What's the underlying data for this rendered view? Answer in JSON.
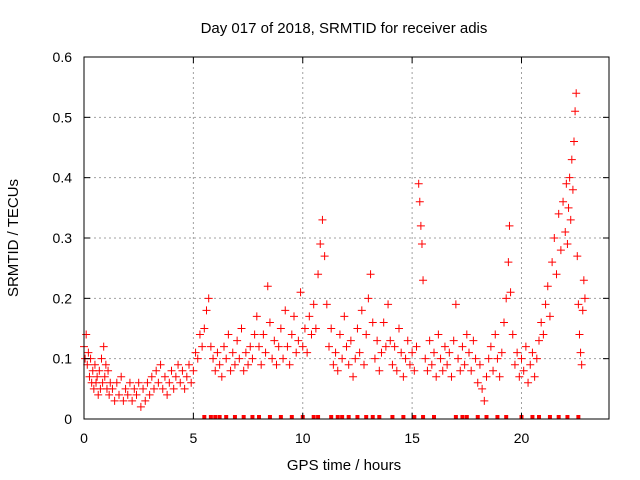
{
  "chart_data": {
    "type": "scatter",
    "title": "Day 017 of 2018, SRMTID for receiver adis",
    "xlabel": "GPS time / hours",
    "ylabel": "SRMTID / TECUs",
    "xlim": [
      0,
      24
    ],
    "ylim": [
      0,
      0.6
    ],
    "x_ticks": [
      0,
      5,
      10,
      15,
      20
    ],
    "x_tick_labels": [
      "0",
      "5",
      "10",
      "15",
      "20"
    ],
    "y_ticks": [
      0,
      0.1,
      0.2,
      0.3,
      0.4,
      0.5,
      0.6
    ],
    "y_tick_labels": [
      "0",
      "0.1",
      "0.2",
      "0.3",
      "0.4",
      "0.5",
      "0.6"
    ],
    "grid": true,
    "marker": "plus",
    "color": "#ff0000",
    "series": [
      {
        "name": "SRMTID",
        "points": [
          [
            0.0,
            0.12
          ],
          [
            0.05,
            0.1
          ],
          [
            0.1,
            0.14
          ],
          [
            0.15,
            0.09
          ],
          [
            0.2,
            0.11
          ],
          [
            0.25,
            0.07
          ],
          [
            0.3,
            0.1
          ],
          [
            0.35,
            0.06
          ],
          [
            0.4,
            0.08
          ],
          [
            0.45,
            0.05
          ],
          [
            0.5,
            0.09
          ],
          [
            0.55,
            0.06
          ],
          [
            0.6,
            0.07
          ],
          [
            0.65,
            0.04
          ],
          [
            0.7,
            0.08
          ],
          [
            0.75,
            0.05
          ],
          [
            0.8,
            0.1
          ],
          [
            0.85,
            0.06
          ],
          [
            0.9,
            0.12
          ],
          [
            0.95,
            0.07
          ],
          [
            1.0,
            0.09
          ],
          [
            1.05,
            0.05
          ],
          [
            1.1,
            0.08
          ],
          [
            1.15,
            0.04
          ],
          [
            1.2,
            0.06
          ],
          [
            1.3,
            0.05
          ],
          [
            1.4,
            0.03
          ],
          [
            1.5,
            0.06
          ],
          [
            1.6,
            0.04
          ],
          [
            1.7,
            0.07
          ],
          [
            1.8,
            0.03
          ],
          [
            1.9,
            0.05
          ],
          [
            2.0,
            0.04
          ],
          [
            2.1,
            0.06
          ],
          [
            2.2,
            0.03
          ],
          [
            2.3,
            0.05
          ],
          [
            2.4,
            0.04
          ],
          [
            2.5,
            0.06
          ],
          [
            2.6,
            0.02
          ],
          [
            2.7,
            0.05
          ],
          [
            2.8,
            0.03
          ],
          [
            2.9,
            0.06
          ],
          [
            3.0,
            0.04
          ],
          [
            3.1,
            0.07
          ],
          [
            3.2,
            0.05
          ],
          [
            3.3,
            0.08
          ],
          [
            3.4,
            0.06
          ],
          [
            3.5,
            0.09
          ],
          [
            3.6,
            0.05
          ],
          [
            3.7,
            0.07
          ],
          [
            3.8,
            0.04
          ],
          [
            3.9,
            0.06
          ],
          [
            4.0,
            0.08
          ],
          [
            4.1,
            0.05
          ],
          [
            4.2,
            0.07
          ],
          [
            4.3,
            0.09
          ],
          [
            4.4,
            0.06
          ],
          [
            4.5,
            0.08
          ],
          [
            4.6,
            0.05
          ],
          [
            4.7,
            0.07
          ],
          [
            4.8,
            0.09
          ],
          [
            4.9,
            0.06
          ],
          [
            5.0,
            0.08
          ],
          [
            5.1,
            0.11
          ],
          [
            5.2,
            0.1
          ],
          [
            5.3,
            0.14
          ],
          [
            5.4,
            0.12
          ],
          [
            5.5,
            0.15
          ],
          [
            5.6,
            0.18
          ],
          [
            5.7,
            0.2
          ],
          [
            5.8,
            0.12
          ],
          [
            5.9,
            0.1
          ],
          [
            6.0,
            0.08
          ],
          [
            6.1,
            0.11
          ],
          [
            6.2,
            0.09
          ],
          [
            6.3,
            0.07
          ],
          [
            6.4,
            0.12
          ],
          [
            6.5,
            0.1
          ],
          [
            6.6,
            0.14
          ],
          [
            6.7,
            0.08
          ],
          [
            6.8,
            0.11
          ],
          [
            6.9,
            0.09
          ],
          [
            7.0,
            0.13
          ],
          [
            7.1,
            0.1
          ],
          [
            7.2,
            0.15
          ],
          [
            7.3,
            0.08
          ],
          [
            7.4,
            0.11
          ],
          [
            7.5,
            0.09
          ],
          [
            7.6,
            0.12
          ],
          [
            7.7,
            0.1
          ],
          [
            7.8,
            0.14
          ],
          [
            7.9,
            0.17
          ],
          [
            8.0,
            0.12
          ],
          [
            8.1,
            0.09
          ],
          [
            8.2,
            0.14
          ],
          [
            8.3,
            0.11
          ],
          [
            8.4,
            0.22
          ],
          [
            8.5,
            0.16
          ],
          [
            8.6,
            0.1
          ],
          [
            8.7,
            0.13
          ],
          [
            8.8,
            0.09
          ],
          [
            8.9,
            0.12
          ],
          [
            9.0,
            0.15
          ],
          [
            9.1,
            0.1
          ],
          [
            9.2,
            0.18
          ],
          [
            9.3,
            0.12
          ],
          [
            9.4,
            0.09
          ],
          [
            9.5,
            0.14
          ],
          [
            9.6,
            0.17
          ],
          [
            9.7,
            0.11
          ],
          [
            9.8,
            0.13
          ],
          [
            9.9,
            0.21
          ],
          [
            10.0,
            0.12
          ],
          [
            10.1,
            0.15
          ],
          [
            10.2,
            0.11
          ],
          [
            10.3,
            0.17
          ],
          [
            10.4,
            0.14
          ],
          [
            10.5,
            0.19
          ],
          [
            10.6,
            0.15
          ],
          [
            10.7,
            0.24
          ],
          [
            10.8,
            0.29
          ],
          [
            10.9,
            0.33
          ],
          [
            11.0,
            0.27
          ],
          [
            11.1,
            0.19
          ],
          [
            11.2,
            0.12
          ],
          [
            11.3,
            0.15
          ],
          [
            11.4,
            0.09
          ],
          [
            11.5,
            0.11
          ],
          [
            11.6,
            0.08
          ],
          [
            11.7,
            0.14
          ],
          [
            11.8,
            0.1
          ],
          [
            11.9,
            0.17
          ],
          [
            12.0,
            0.12
          ],
          [
            12.1,
            0.09
          ],
          [
            12.2,
            0.13
          ],
          [
            12.3,
            0.07
          ],
          [
            12.4,
            0.1
          ],
          [
            12.5,
            0.15
          ],
          [
            12.6,
            0.11
          ],
          [
            12.7,
            0.18
          ],
          [
            12.8,
            0.09
          ],
          [
            12.9,
            0.14
          ],
          [
            13.0,
            0.2
          ],
          [
            13.1,
            0.24
          ],
          [
            13.2,
            0.16
          ],
          [
            13.3,
            0.1
          ],
          [
            13.4,
            0.13
          ],
          [
            13.5,
            0.08
          ],
          [
            13.6,
            0.11
          ],
          [
            13.7,
            0.16
          ],
          [
            13.8,
            0.12
          ],
          [
            13.9,
            0.19
          ],
          [
            14.0,
            0.13
          ],
          [
            14.1,
            0.09
          ],
          [
            14.2,
            0.12
          ],
          [
            14.3,
            0.08
          ],
          [
            14.4,
            0.15
          ],
          [
            14.5,
            0.11
          ],
          [
            14.6,
            0.07
          ],
          [
            14.7,
            0.1
          ],
          [
            14.8,
            0.13
          ],
          [
            14.9,
            0.09
          ],
          [
            15.0,
            0.11
          ],
          [
            15.1,
            0.08
          ],
          [
            15.2,
            0.12
          ],
          [
            15.3,
            0.39
          ],
          [
            15.35,
            0.36
          ],
          [
            15.4,
            0.32
          ],
          [
            15.45,
            0.29
          ],
          [
            15.5,
            0.23
          ],
          [
            15.6,
            0.1
          ],
          [
            15.7,
            0.08
          ],
          [
            15.8,
            0.13
          ],
          [
            15.9,
            0.09
          ],
          [
            16.0,
            0.11
          ],
          [
            16.1,
            0.07
          ],
          [
            16.2,
            0.14
          ],
          [
            16.3,
            0.1
          ],
          [
            16.4,
            0.08
          ],
          [
            16.5,
            0.12
          ],
          [
            16.6,
            0.09
          ],
          [
            16.7,
            0.11
          ],
          [
            16.8,
            0.07
          ],
          [
            16.9,
            0.13
          ],
          [
            17.0,
            0.19
          ],
          [
            17.1,
            0.1
          ],
          [
            17.2,
            0.08
          ],
          [
            17.3,
            0.12
          ],
          [
            17.4,
            0.09
          ],
          [
            17.5,
            0.14
          ],
          [
            17.6,
            0.11
          ],
          [
            17.7,
            0.08
          ],
          [
            17.8,
            0.13
          ],
          [
            17.9,
            0.1
          ],
          [
            18.0,
            0.06
          ],
          [
            18.1,
            0.09
          ],
          [
            18.2,
            0.05
          ],
          [
            18.3,
            0.03
          ],
          [
            18.4,
            0.07
          ],
          [
            18.5,
            0.1
          ],
          [
            18.6,
            0.12
          ],
          [
            18.7,
            0.08
          ],
          [
            18.8,
            0.14
          ],
          [
            18.9,
            0.1
          ],
          [
            19.0,
            0.07
          ],
          [
            19.1,
            0.11
          ],
          [
            19.2,
            0.16
          ],
          [
            19.3,
            0.2
          ],
          [
            19.4,
            0.26
          ],
          [
            19.45,
            0.32
          ],
          [
            19.5,
            0.21
          ],
          [
            19.6,
            0.14
          ],
          [
            19.7,
            0.09
          ],
          [
            19.8,
            0.11
          ],
          [
            19.9,
            0.07
          ],
          [
            20.0,
            0.1
          ],
          [
            20.1,
            0.08
          ],
          [
            20.2,
            0.12
          ],
          [
            20.3,
            0.06
          ],
          [
            20.4,
            0.09
          ],
          [
            20.5,
            0.11
          ],
          [
            20.6,
            0.07
          ],
          [
            20.7,
            0.1
          ],
          [
            20.8,
            0.13
          ],
          [
            20.9,
            0.16
          ],
          [
            21.0,
            0.14
          ],
          [
            21.1,
            0.19
          ],
          [
            21.2,
            0.22
          ],
          [
            21.3,
            0.17
          ],
          [
            21.4,
            0.26
          ],
          [
            21.5,
            0.3
          ],
          [
            21.6,
            0.24
          ],
          [
            21.7,
            0.34
          ],
          [
            21.8,
            0.28
          ],
          [
            21.9,
            0.36
          ],
          [
            22.0,
            0.31
          ],
          [
            22.05,
            0.39
          ],
          [
            22.1,
            0.29
          ],
          [
            22.15,
            0.35
          ],
          [
            22.2,
            0.4
          ],
          [
            22.25,
            0.33
          ],
          [
            22.3,
            0.43
          ],
          [
            22.35,
            0.38
          ],
          [
            22.4,
            0.46
          ],
          [
            22.45,
            0.51
          ],
          [
            22.5,
            0.54
          ],
          [
            22.55,
            0.27
          ],
          [
            22.6,
            0.19
          ],
          [
            22.65,
            0.14
          ],
          [
            22.7,
            0.11
          ],
          [
            22.75,
            0.09
          ],
          [
            22.8,
            0.18
          ],
          [
            22.85,
            0.23
          ],
          [
            22.9,
            0.2
          ]
        ]
      }
    ],
    "rug_marks": [
      5.5,
      5.8,
      6.0,
      6.2,
      6.5,
      6.9,
      7.3,
      7.7,
      8.0,
      8.5,
      9.0,
      9.5,
      10.0,
      10.5,
      10.7,
      11.3,
      11.6,
      11.8,
      12.1,
      12.5,
      12.9,
      13.2,
      13.5,
      14.1,
      14.6,
      15.1,
      15.5,
      16.0,
      17.0,
      17.3,
      17.5,
      18.0,
      18.4,
      18.9,
      19.3,
      20.0,
      20.5,
      20.8,
      21.3,
      21.7,
      22.1,
      22.6
    ]
  }
}
